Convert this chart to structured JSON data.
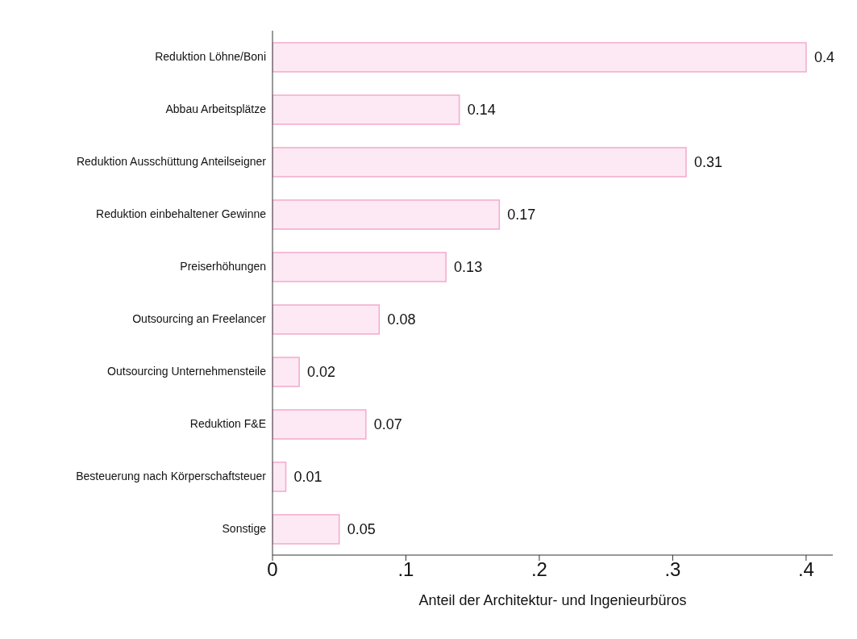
{
  "chart_data": {
    "type": "bar",
    "orientation": "horizontal",
    "xlabel": "Anteil der Architektur- und Ingenieurbüros",
    "categories": [
      "Reduktion Löhne/Boni",
      "Abbau Arbeitsplätze",
      "Reduktion Ausschüttung Anteilseigner",
      "Reduktion einbehaltener Gewinne",
      "Preiserhöhungen",
      "Outsourcing an Freelancer",
      "Outsourcing Unternehmensteile",
      "Reduktion F&E",
      "Besteuerung nach Körperschaftsteuer",
      "Sonstige"
    ],
    "values": [
      0.4,
      0.14,
      0.31,
      0.17,
      0.13,
      0.08,
      0.02,
      0.07,
      0.01,
      0.05
    ],
    "color": "#fde9f4",
    "xlim": [
      0,
      0.42
    ],
    "xticks": [
      0,
      {
        "value": 0.1,
        "label": ".1"
      },
      {
        "value": 0.2,
        "label": ".2"
      },
      {
        "value": 0.3,
        "label": ".3"
      },
      {
        "value": 0.4,
        "label": ".4"
      }
    ],
    "data_labels": true,
    "grid": false,
    "legend": false
  }
}
